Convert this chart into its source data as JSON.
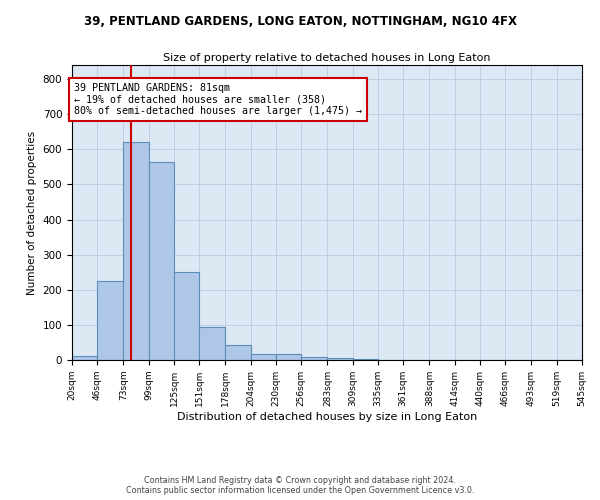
{
  "title": "39, PENTLAND GARDENS, LONG EATON, NOTTINGHAM, NG10 4FX",
  "subtitle": "Size of property relative to detached houses in Long Eaton",
  "xlabel": "Distribution of detached houses by size in Long Eaton",
  "ylabel": "Number of detached properties",
  "bin_edges": [
    20,
    46,
    73,
    99,
    125,
    151,
    178,
    204,
    230,
    256,
    283,
    309,
    335,
    361,
    388,
    414,
    440,
    466,
    493,
    519,
    545
  ],
  "bar_heights": [
    10,
    225,
    620,
    565,
    250,
    95,
    42,
    18,
    18,
    8,
    5,
    2,
    1,
    0,
    0,
    0,
    0,
    0,
    0,
    0
  ],
  "bar_color": "#aec6e8",
  "bar_edge_color": "#5b8db8",
  "bar_edge_width": 0.8,
  "grid_color": "#c0d0e0",
  "bg_color": "#dce8f4",
  "property_size": 81,
  "red_line_color": "#cc0000",
  "annotation_text": "39 PENTLAND GARDENS: 81sqm\n← 19% of detached houses are smaller (358)\n80% of semi-detached houses are larger (1,475) →",
  "annotation_box_color": "#ffffff",
  "annotation_box_edge": "#cc0000",
  "ylim": [
    0,
    840
  ],
  "yticks": [
    0,
    100,
    200,
    300,
    400,
    500,
    600,
    700,
    800
  ],
  "footer_line1": "Contains HM Land Registry data © Crown copyright and database right 2024.",
  "footer_line2": "Contains public sector information licensed under the Open Government Licence v3.0."
}
